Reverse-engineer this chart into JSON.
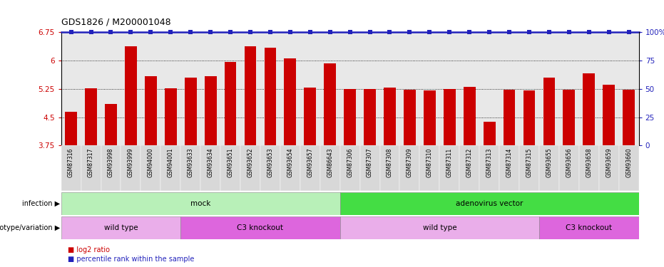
{
  "title": "GDS1826 / M200001048",
  "samples": [
    "GSM87316",
    "GSM87317",
    "GSM93998",
    "GSM93999",
    "GSM94000",
    "GSM94001",
    "GSM93633",
    "GSM93634",
    "GSM93651",
    "GSM93652",
    "GSM93653",
    "GSM93654",
    "GSM93657",
    "GSM86643",
    "GSM87306",
    "GSM87307",
    "GSM87308",
    "GSM87309",
    "GSM87310",
    "GSM87311",
    "GSM87312",
    "GSM87313",
    "GSM87314",
    "GSM87315",
    "GSM93655",
    "GSM93656",
    "GSM93658",
    "GSM93659",
    "GSM93660"
  ],
  "bar_values": [
    4.65,
    5.27,
    4.85,
    6.37,
    5.58,
    5.27,
    5.55,
    5.58,
    5.95,
    6.37,
    6.33,
    6.05,
    5.28,
    5.93,
    5.25,
    5.25,
    5.29,
    5.22,
    5.2,
    5.25,
    5.3,
    4.37,
    5.22,
    5.2,
    5.55,
    5.22,
    5.65,
    5.35,
    5.22
  ],
  "ylim_left": [
    3.75,
    6.75
  ],
  "ylim_right": [
    0,
    100
  ],
  "yticks_left": [
    3.75,
    4.5,
    5.25,
    6.0,
    6.75
  ],
  "yticks_left_labels": [
    "3.75",
    "4.5",
    "5.25",
    "6",
    "6.75"
  ],
  "yticks_right": [
    0,
    25,
    50,
    75,
    100
  ],
  "yticks_right_labels": [
    "0",
    "25",
    "50",
    "75",
    "100%"
  ],
  "bar_color": "#cc0000",
  "percentile_color": "#2222bb",
  "plot_bg_color": "#e8e8e8",
  "infection_groups": [
    {
      "label": "mock",
      "start": 0,
      "end": 13,
      "color": "#b8f0b8"
    },
    {
      "label": "adenovirus vector",
      "start": 14,
      "end": 28,
      "color": "#44dd44"
    }
  ],
  "genotype_groups": [
    {
      "label": "wild type",
      "start": 0,
      "end": 5,
      "color": "#eaaeea"
    },
    {
      "label": "C3 knockout",
      "start": 6,
      "end": 13,
      "color": "#dd66dd"
    },
    {
      "label": "wild type",
      "start": 14,
      "end": 23,
      "color": "#eaaeea"
    },
    {
      "label": "C3 knockout",
      "start": 24,
      "end": 28,
      "color": "#dd66dd"
    }
  ],
  "infection_label": "infection",
  "genotype_label": "genotype/variation",
  "legend_bar_label": "log2 ratio",
  "legend_pct_label": "percentile rank within the sample"
}
